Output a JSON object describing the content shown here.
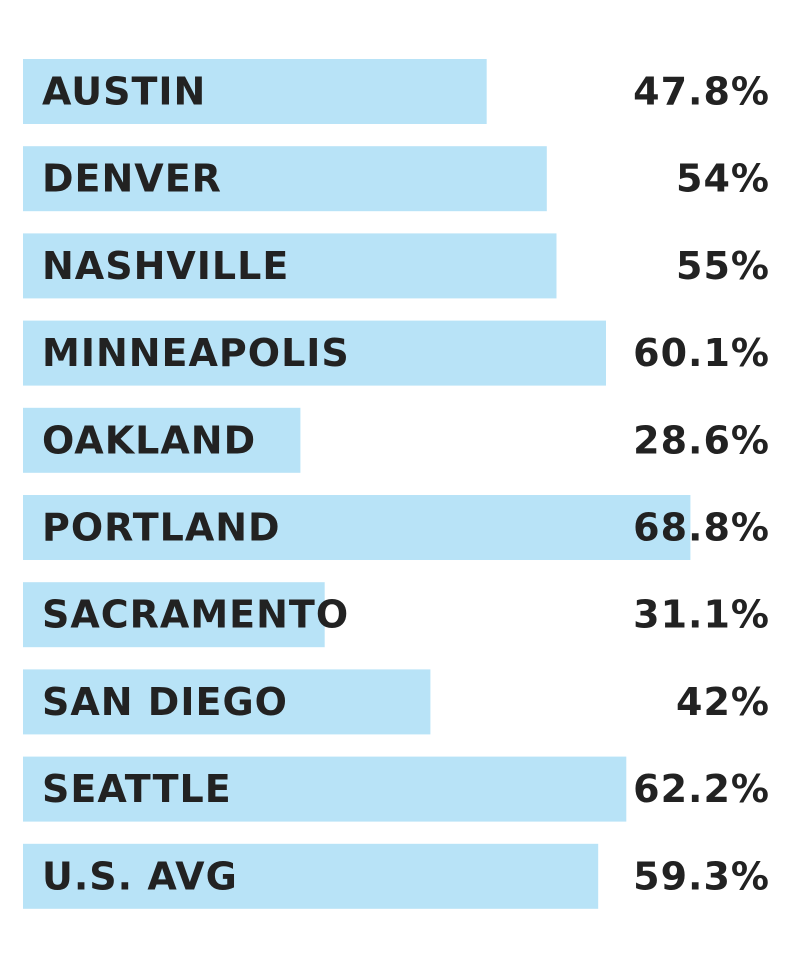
{
  "chart_data": {
    "type": "bar",
    "orientation": "horizontal",
    "title": "",
    "xlabel": "",
    "ylabel": "",
    "xlim": [
      0,
      70
    ],
    "grid": false,
    "legend": "none",
    "bar_color": "#b8e3f7",
    "text_color": "#222222",
    "categories": [
      "AUSTIN",
      "DENVER",
      "NASHVILLE",
      "MINNEAPOLIS",
      "OAKLAND",
      "PORTLAND",
      "SACRAMENTO",
      "SAN DIEGO",
      "SEATTLE",
      "U.S. AVG"
    ],
    "values": [
      47.8,
      54,
      55,
      60.1,
      28.6,
      68.8,
      31.1,
      42,
      62.2,
      59.3
    ],
    "value_labels": [
      "47.8%",
      "54%",
      "55%",
      "60.1%",
      "28.6%",
      "68.8%",
      "31.1%",
      "42%",
      "62.2%",
      "59.3%"
    ]
  }
}
